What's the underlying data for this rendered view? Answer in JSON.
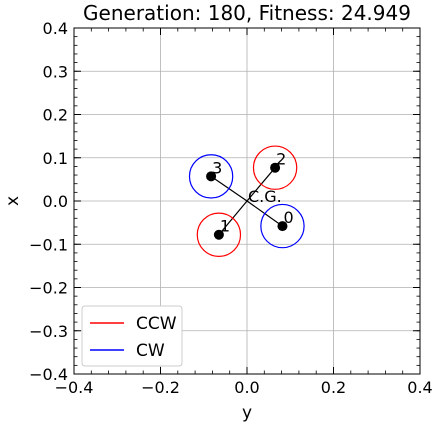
{
  "chart_data": {
    "type": "scatter",
    "title": "Generation: 180, Fitness: 24.949",
    "xlabel": "y",
    "ylabel": "x",
    "xlim": [
      -0.4,
      0.4
    ],
    "ylim": [
      -0.4,
      0.4
    ],
    "xticks": [
      "−0.4",
      "−0.2",
      "0.0",
      "0.2",
      "0.4"
    ],
    "yticks": [
      "−0.4",
      "−0.3",
      "−0.2",
      "−0.1",
      "0.0",
      "0.1",
      "0.2",
      "0.3",
      "0.4"
    ],
    "xtick_values": [
      -0.4,
      -0.2,
      0.0,
      0.2,
      0.4
    ],
    "ytick_values": [
      -0.4,
      -0.3,
      -0.2,
      -0.1,
      0.0,
      0.1,
      0.2,
      0.3,
      0.4
    ],
    "grid": true,
    "legend_position": "lower-left",
    "legend": [
      {
        "label": "CCW",
        "color": "#ff0000"
      },
      {
        "label": "CW",
        "color": "#0000ff"
      }
    ],
    "cg_label": "C.G.",
    "cg": {
      "y": 0.0,
      "x": 0.0
    },
    "rotor_radius": 0.05,
    "rotors": [
      {
        "label": "0",
        "y": 0.082,
        "x": -0.058,
        "direction": "CW"
      },
      {
        "label": "1",
        "y": -0.065,
        "x": -0.078,
        "direction": "CCW"
      },
      {
        "label": "2",
        "y": 0.065,
        "x": 0.077,
        "direction": "CCW"
      },
      {
        "label": "3",
        "y": -0.083,
        "x": 0.057,
        "direction": "CW"
      }
    ],
    "colors": {
      "CCW": "#ff0000",
      "CW": "#0000ff"
    }
  }
}
